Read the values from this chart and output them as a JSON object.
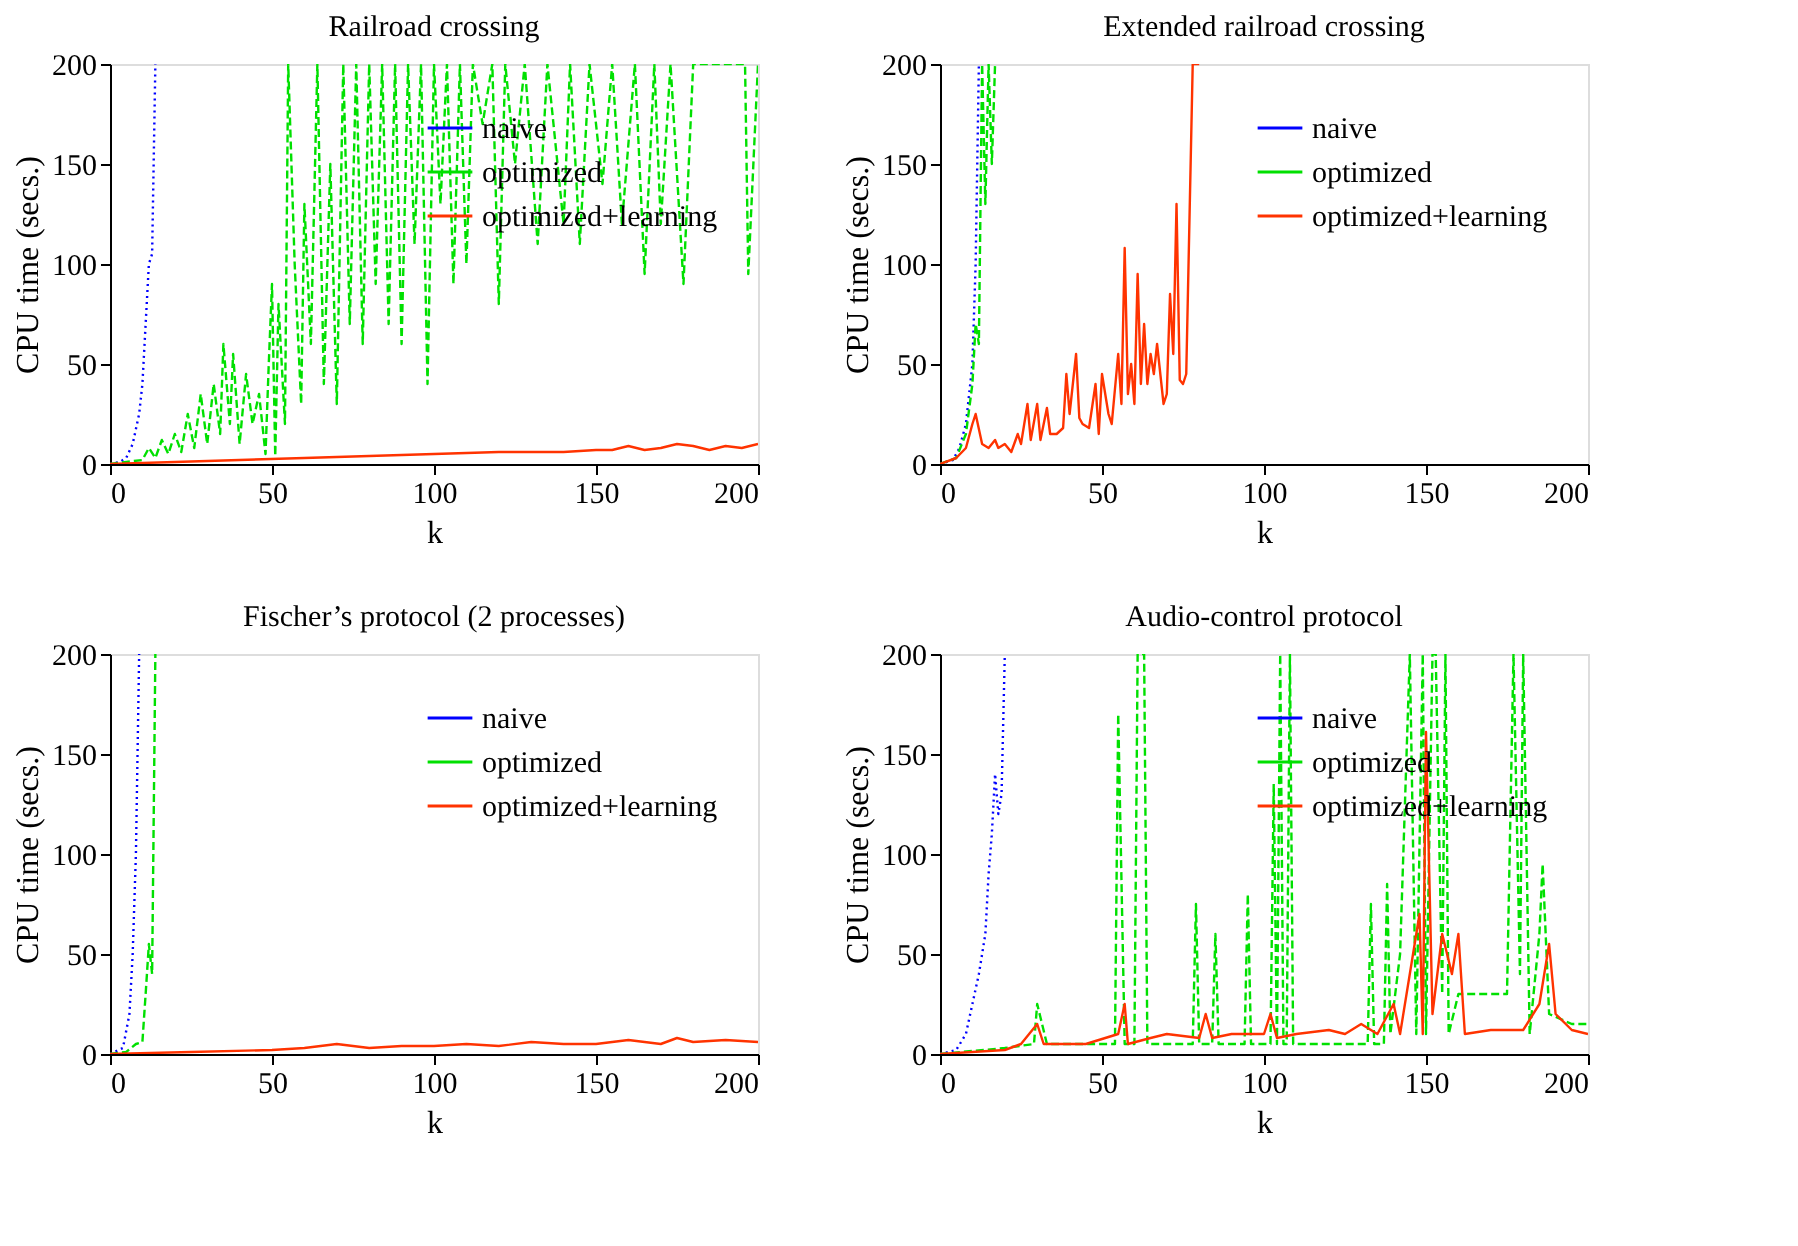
{
  "chart_data": [
    {
      "type": "line",
      "title": "Railroad crossing",
      "xlabel": "k",
      "ylabel": "CPU time (secs.)",
      "xlim": [
        0,
        200
      ],
      "ylim": [
        0,
        200
      ],
      "xticks": [
        0,
        50,
        100,
        150,
        200
      ],
      "yticks": [
        0,
        50,
        100,
        150,
        200
      ],
      "grid": false,
      "legend": "top right",
      "marker": "none",
      "series": [
        {
          "name": "naive",
          "color": "#0000ff",
          "line_style": "dotted",
          "x": [
            0,
            3,
            5,
            7,
            9,
            10,
            11,
            12,
            13,
            14
          ],
          "values": [
            0,
            1,
            3,
            10,
            25,
            40,
            70,
            100,
            105,
            200
          ]
        },
        {
          "name": "optimized",
          "color": "#00e000",
          "line_style": "dashed",
          "x": [
            0,
            5,
            10,
            12,
            14,
            16,
            18,
            20,
            22,
            24,
            26,
            28,
            30,
            32,
            34,
            35,
            37,
            38,
            40,
            42,
            44,
            46,
            48,
            49,
            50,
            51,
            52,
            54,
            55,
            57,
            59,
            60,
            62,
            64,
            66,
            68,
            70,
            72,
            74,
            76,
            78,
            80,
            82,
            84,
            86,
            88,
            90,
            92,
            94,
            96,
            98,
            100,
            102,
            104,
            106,
            108,
            110,
            112,
            115,
            118,
            120,
            122,
            125,
            128,
            132,
            135,
            140,
            142,
            145,
            148,
            152,
            155,
            158,
            162,
            165,
            168,
            170,
            173,
            177,
            180,
            185,
            190,
            196,
            197,
            200
          ],
          "values": [
            0,
            1,
            2,
            8,
            3,
            12,
            5,
            15,
            6,
            25,
            8,
            35,
            10,
            40,
            15,
            60,
            20,
            55,
            10,
            45,
            20,
            35,
            5,
            50,
            90,
            4,
            80,
            20,
            200,
            100,
            30,
            130,
            60,
            200,
            40,
            150,
            30,
            200,
            70,
            200,
            60,
            200,
            90,
            200,
            70,
            200,
            60,
            200,
            110,
            200,
            40,
            200,
            130,
            200,
            90,
            200,
            100,
            200,
            170,
            200,
            80,
            200,
            150,
            200,
            110,
            200,
            120,
            200,
            110,
            200,
            140,
            200,
            120,
            200,
            95,
            200,
            120,
            200,
            90,
            200,
            200,
            200,
            200,
            95,
            200
          ]
        },
        {
          "name": "optimized+learning",
          "color": "#ff3300",
          "line_style": "solid",
          "x": [
            0,
            20,
            40,
            60,
            80,
            100,
            120,
            140,
            150,
            155,
            160,
            165,
            170,
            175,
            180,
            185,
            190,
            195,
            200
          ],
          "values": [
            0,
            1,
            2,
            3,
            4,
            5,
            6,
            6,
            7,
            7,
            9,
            7,
            8,
            10,
            9,
            7,
            9,
            8,
            10
          ]
        }
      ]
    },
    {
      "type": "line",
      "title": "Extended railroad crossing",
      "xlabel": "k",
      "ylabel": "CPU time (secs.)",
      "xlim": [
        0,
        200
      ],
      "ylim": [
        0,
        200
      ],
      "xticks": [
        0,
        50,
        100,
        150,
        200
      ],
      "yticks": [
        0,
        50,
        100,
        150,
        200
      ],
      "grid": false,
      "legend": "top right",
      "marker": "none",
      "series": [
        {
          "name": "naive",
          "color": "#0000ff",
          "line_style": "dotted",
          "x": [
            0,
            4,
            6,
            8,
            10,
            11,
            12
          ],
          "values": [
            0,
            2,
            8,
            20,
            50,
            100,
            200
          ]
        },
        {
          "name": "optimized",
          "color": "#00e000",
          "line_style": "dashed",
          "x": [
            0,
            5,
            8,
            10,
            11,
            12,
            13,
            14,
            15,
            16,
            17
          ],
          "values": [
            0,
            3,
            15,
            40,
            70,
            60,
            200,
            130,
            200,
            150,
            200
          ]
        },
        {
          "name": "optimized+learning",
          "color": "#ff3300",
          "line_style": "solid",
          "x": [
            0,
            5,
            8,
            10,
            11,
            13,
            15,
            17,
            18,
            20,
            22,
            24,
            25,
            27,
            28,
            30,
            31,
            33,
            34,
            36,
            38,
            39,
            40,
            42,
            43,
            44,
            46,
            48,
            49,
            50,
            52,
            53,
            55,
            56,
            57,
            58,
            59,
            60,
            61,
            62,
            63,
            64,
            65,
            66,
            67,
            69,
            70,
            71,
            72,
            73,
            74,
            75,
            76,
            78,
            80
          ],
          "values": [
            0,
            3,
            8,
            20,
            25,
            10,
            8,
            12,
            8,
            10,
            6,
            15,
            10,
            30,
            12,
            30,
            12,
            28,
            15,
            15,
            18,
            45,
            25,
            55,
            23,
            20,
            18,
            40,
            15,
            45,
            25,
            20,
            55,
            30,
            108,
            35,
            50,
            30,
            95,
            40,
            70,
            40,
            55,
            45,
            60,
            30,
            35,
            85,
            55,
            130,
            42,
            40,
            45,
            200,
            200
          ]
        }
      ]
    },
    {
      "type": "line",
      "title": "Fischer’s protocol (2 processes)",
      "xlabel": "k",
      "ylabel": "CPU time (secs.)",
      "xlim": [
        0,
        200
      ],
      "ylim": [
        0,
        200
      ],
      "xticks": [
        0,
        50,
        100,
        150,
        200
      ],
      "yticks": [
        0,
        50,
        100,
        150,
        200
      ],
      "grid": false,
      "legend": "top right",
      "marker": "none",
      "series": [
        {
          "name": "naive",
          "color": "#0000ff",
          "line_style": "dotted",
          "x": [
            0,
            4,
            6,
            7,
            8,
            9
          ],
          "values": [
            0,
            3,
            20,
            50,
            100,
            200
          ]
        },
        {
          "name": "optimized",
          "color": "#00e000",
          "line_style": "dashed",
          "x": [
            0,
            5,
            8,
            10,
            11,
            12,
            13,
            14
          ],
          "values": [
            0,
            1,
            5,
            6,
            30,
            55,
            40,
            200
          ]
        },
        {
          "name": "optimized+learning",
          "color": "#ff3300",
          "line_style": "solid",
          "x": [
            0,
            25,
            50,
            60,
            70,
            80,
            90,
            100,
            110,
            120,
            130,
            140,
            150,
            160,
            170,
            175,
            180,
            190,
            200
          ],
          "values": [
            0,
            1,
            2,
            3,
            5,
            3,
            4,
            4,
            5,
            4,
            6,
            5,
            5,
            7,
            5,
            8,
            6,
            7,
            6
          ]
        }
      ]
    },
    {
      "type": "line",
      "title": "Audio-control protocol",
      "xlabel": "k",
      "ylabel": "CPU time (secs.)",
      "xlim": [
        0,
        200
      ],
      "ylim": [
        0,
        200
      ],
      "xticks": [
        0,
        50,
        100,
        150,
        200
      ],
      "yticks": [
        0,
        50,
        100,
        150,
        200
      ],
      "grid": false,
      "legend": "top right",
      "marker": "none",
      "series": [
        {
          "name": "naive",
          "color": "#0000ff",
          "line_style": "dotted",
          "x": [
            0,
            5,
            8,
            10,
            12,
            14,
            15,
            16,
            17,
            18,
            19,
            20
          ],
          "values": [
            0,
            2,
            10,
            25,
            40,
            60,
            90,
            110,
            140,
            120,
            130,
            200
          ]
        },
        {
          "name": "optimized",
          "color": "#00e000",
          "line_style": "dashed",
          "x": [
            0,
            20,
            29,
            30,
            33,
            40,
            54,
            55,
            57,
            60,
            61,
            62,
            63,
            64,
            78,
            79,
            80,
            84,
            85,
            86,
            94,
            95,
            96,
            102,
            103,
            104,
            105,
            106,
            107,
            108,
            109,
            132,
            133,
            134,
            137,
            138,
            139,
            142,
            145,
            147,
            149,
            150,
            152,
            153,
            155,
            156,
            157,
            160,
            175,
            177,
            179,
            180,
            182,
            185,
            186,
            188,
            195,
            200
          ],
          "values": [
            0,
            3,
            5,
            25,
            5,
            5,
            5,
            170,
            5,
            5,
            200,
            200,
            200,
            5,
            5,
            75,
            5,
            5,
            60,
            5,
            5,
            80,
            5,
            5,
            135,
            5,
            200,
            5,
            5,
            200,
            5,
            5,
            75,
            5,
            5,
            85,
            10,
            50,
            200,
            10,
            200,
            10,
            200,
            200,
            30,
            200,
            10,
            30,
            30,
            200,
            40,
            200,
            10,
            60,
            95,
            20,
            15,
            15
          ]
        },
        {
          "name": "optimized+learning",
          "color": "#ff3300",
          "line_style": "solid",
          "x": [
            0,
            20,
            25,
            30,
            32,
            45,
            55,
            57,
            58,
            65,
            70,
            80,
            82,
            84,
            90,
            100,
            102,
            104,
            110,
            120,
            125,
            130,
            135,
            140,
            142,
            145,
            148,
            149,
            150,
            152,
            155,
            158,
            160,
            162,
            170,
            180,
            185,
            188,
            190,
            195,
            200
          ],
          "values": [
            0,
            2,
            5,
            15,
            5,
            5,
            10,
            25,
            5,
            8,
            10,
            8,
            20,
            8,
            10,
            10,
            20,
            8,
            10,
            12,
            10,
            15,
            10,
            25,
            10,
            40,
            70,
            10,
            161,
            20,
            60,
            40,
            60,
            10,
            12,
            12,
            25,
            55,
            20,
            12,
            10
          ]
        }
      ]
    }
  ]
}
